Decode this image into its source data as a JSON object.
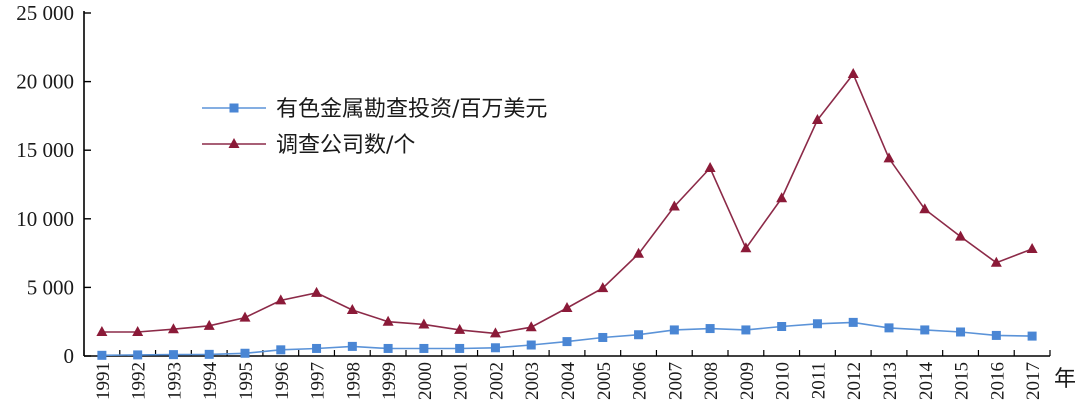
{
  "chart_data": {
    "type": "line",
    "x": [
      "1991",
      "1992",
      "1993",
      "1994",
      "1995",
      "1996",
      "1997",
      "1998",
      "1999",
      "2000",
      "2001",
      "2002",
      "2003",
      "2004",
      "2005",
      "2006",
      "2007",
      "2008",
      "2009",
      "2010",
      "2011",
      "2012",
      "2013",
      "2014",
      "2015",
      "2016",
      "2017"
    ],
    "x_unit": "年",
    "ylim": [
      0,
      25000
    ],
    "yticks": [
      0,
      5000,
      10000,
      15000,
      20000,
      25000
    ],
    "ytick_labels": [
      "0",
      "5 000",
      "10 000",
      "15 000",
      "20 000",
      "25 000"
    ],
    "legend_position": "upper-left",
    "grid": false,
    "series": [
      {
        "name": "有色金属勘查投资/百万美元",
        "color": "#4a86d4",
        "line_color": "#5b93d8",
        "marker": "square",
        "values": [
          50,
          80,
          100,
          120,
          200,
          450,
          550,
          700,
          550,
          550,
          550,
          600,
          800,
          1050,
          1350,
          1550,
          1900,
          2000,
          1900,
          2150,
          2350,
          2450,
          2050,
          1900,
          1750,
          1500,
          1450
        ]
      },
      {
        "name": "调查公司数/个",
        "color": "#8b1a38",
        "line_color": "#8c2a48",
        "marker": "triangle",
        "values": [
          1750,
          1750,
          1950,
          2200,
          2800,
          4050,
          4600,
          3350,
          2500,
          2300,
          1900,
          1650,
          2100,
          3500,
          4950,
          7450,
          10900,
          13700,
          7850,
          11500,
          17200,
          20550,
          14400,
          10700,
          8700,
          6800,
          7800
        ]
      }
    ]
  }
}
